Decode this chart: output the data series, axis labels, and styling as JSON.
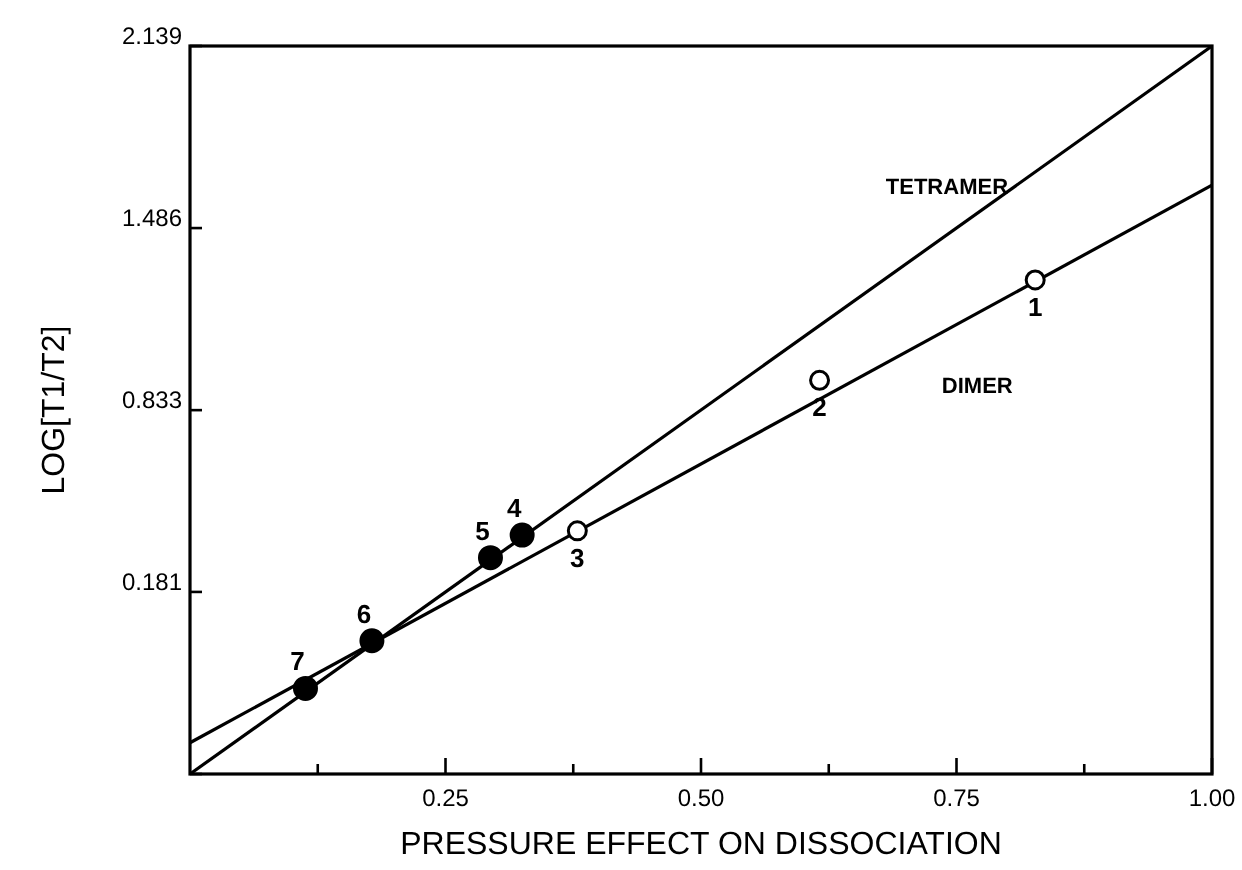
{
  "chart_data": {
    "type": "scatter",
    "xlabel": "PRESSURE EFFECT ON DISSOCIATION",
    "ylabel": "LOG[T1/T2]",
    "xlim": [
      0,
      1
    ],
    "ylim": [
      -0.472,
      2.139
    ],
    "xticks": [
      {
        "value": 0.125,
        "label": null
      },
      {
        "value": 0.25,
        "label": "0.25"
      },
      {
        "value": 0.375,
        "label": null
      },
      {
        "value": 0.5,
        "label": "0.50"
      },
      {
        "value": 0.625,
        "label": null
      },
      {
        "value": 0.75,
        "label": "0.75"
      },
      {
        "value": 0.875,
        "label": null
      },
      {
        "value": 1,
        "label": "1.00"
      }
    ],
    "yticks": [
      {
        "value": -0.472,
        "label": null
      },
      0.181,
      0.833,
      1.486,
      2.139
    ],
    "grid": false,
    "series": [
      {
        "name": "TETRAMER",
        "type": "line",
        "color": "#000000",
        "x": [
          0,
          1
        ],
        "values": [
          -0.472,
          2.139
        ]
      },
      {
        "name": "DIMER",
        "type": "line",
        "color": "#000000",
        "x": [
          0,
          1
        ],
        "values": [
          -0.36,
          1.64
        ]
      },
      {
        "marker": "circle",
        "color": "#000000",
        "x": [
          0.827,
          0.616,
          0.379
        ],
        "values": [
          1.3,
          0.94,
          0.4
        ]
      },
      {
        "marker": "circle",
        "color": "#000000",
        "x": [
          0.325,
          0.294,
          0.178,
          0.113
        ],
        "values": [
          0.385,
          0.304,
          0.006,
          -0.165
        ]
      }
    ],
    "annotations": [
      {
        "text": "1",
        "x": 0.827,
        "y": 1.3
      },
      {
        "text": "2",
        "x": 0.616,
        "y": 0.94
      },
      {
        "text": "3",
        "x": 0.379,
        "y": 0.4
      },
      {
        "text": "4",
        "x": 0.325,
        "y": 0.385
      },
      {
        "text": "5",
        "x": 0.294,
        "y": 0.304
      },
      {
        "text": "6",
        "x": 0.178,
        "y": 0.006
      },
      {
        "text": "7",
        "x": 0.113,
        "y": -0.165
      }
    ]
  }
}
